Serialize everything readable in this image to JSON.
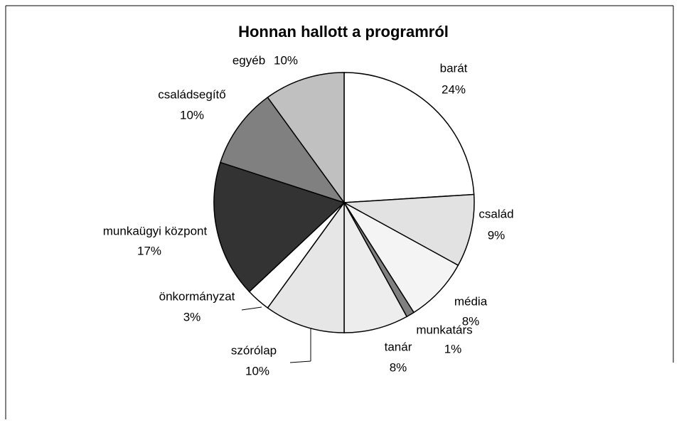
{
  "chart_data": {
    "type": "pie",
    "title": "Honnan hallott a programról",
    "categories": [
      "barát",
      "család",
      "média",
      "munkatárs",
      "tanár",
      "szórólap",
      "önkormányzat",
      "munkaügyi központ",
      "családsegítő",
      "egyéb"
    ],
    "values": [
      24,
      9,
      8,
      1,
      8,
      10,
      3,
      17,
      10,
      10
    ],
    "value_labels": [
      "24%",
      "9%",
      "8%",
      "1%",
      "8%",
      "10%",
      "3%",
      "17%",
      "10%",
      "10%"
    ],
    "colors": [
      "#ffffff",
      "#e2e2e2",
      "#f4f4f4",
      "#808080",
      "#ededed",
      "#e6e6e6",
      "#ffffff",
      "#333333",
      "#808080",
      "#c0c0c0"
    ]
  }
}
